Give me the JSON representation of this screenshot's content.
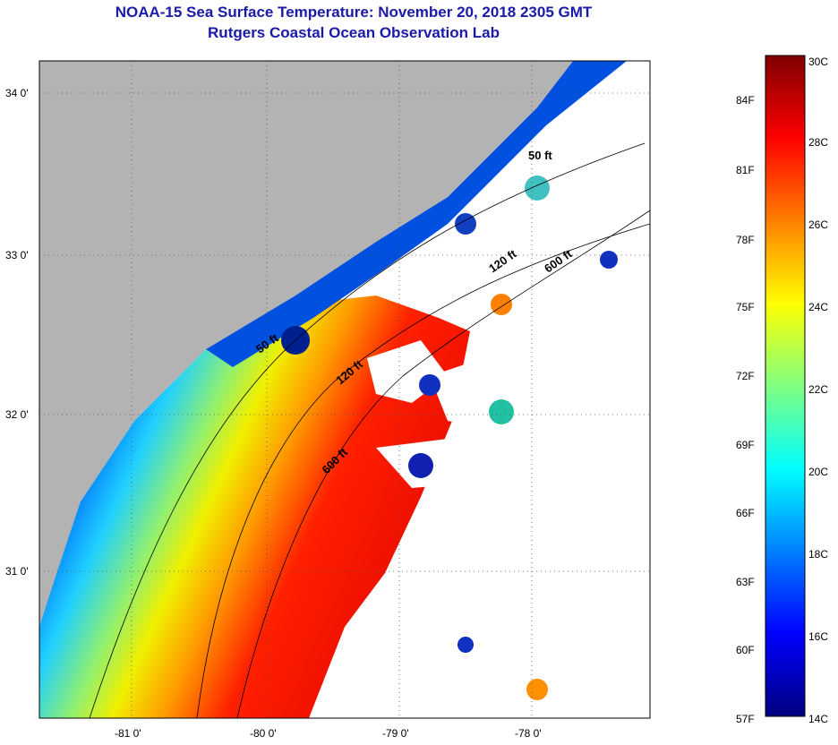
{
  "title": "NOAA-15 Sea Surface Temperature:  November 20, 2018 2305 GMT",
  "subtitle": "Rutgers Coastal Ocean Observation Lab",
  "map": {
    "lat_labels": [
      "34 0'",
      "33 0'",
      "32 0'",
      "31 0'"
    ],
    "lon_labels": [
      "-81 0'",
      "-80 0'",
      "-79 0'",
      "-78 0'"
    ],
    "contour_labels": [
      "50 ft",
      "120 ft",
      "600 ft",
      "50 ft",
      "120 ft",
      "600 ft"
    ],
    "colors": {
      "land": "#b3b3b3",
      "cloud": "#ffffff"
    }
  },
  "colorbar": {
    "fahrenheit": [
      "84F",
      "81F",
      "78F",
      "75F",
      "72F",
      "69F",
      "66F",
      "63F",
      "60F",
      "57F"
    ],
    "celsius": [
      "30C",
      "28C",
      "26C",
      "24C",
      "22C",
      "20C",
      "18C",
      "16C",
      "14C"
    ],
    "range_c": [
      14,
      30
    ]
  }
}
